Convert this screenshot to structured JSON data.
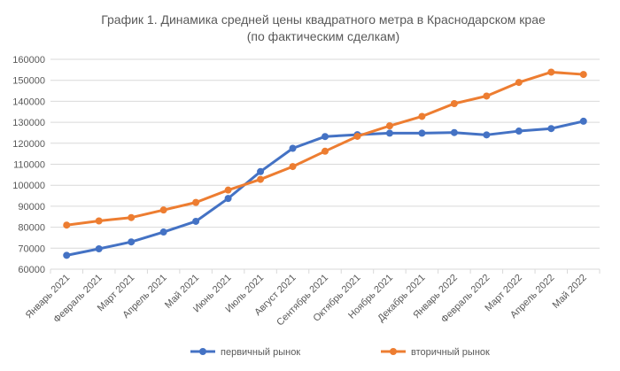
{
  "chart_data": {
    "type": "line",
    "title": "График 1. Динамика средней цены квадратного метра в Краснодарском крае",
    "subtitle": "(по фактическим сделкам)",
    "xlabel": "",
    "ylabel": "",
    "ylim": [
      60000,
      160000
    ],
    "yticks": [
      "60000",
      "70000",
      "80000",
      "90000",
      "100000",
      "110000",
      "120000",
      "130000",
      "140000",
      "150000",
      "160000"
    ],
    "grid": true,
    "legend_position": "bottom",
    "categories": [
      "Январь 2021",
      "Февраль 2021",
      "Март 2021",
      "Апрель 2021",
      "Май 2021",
      "Июнь 2021",
      "Июль 2021",
      "Август 2021",
      "Сентябрь 2021",
      "Октябрь 2021",
      "Ноябрь 2021",
      "Декабрь 2021",
      "Январь 2022",
      "Февраль 2022",
      "Март 2022",
      "Апрель 2022",
      "Май 2022"
    ],
    "series": [
      {
        "name": "первичный рынок",
        "color": "#4472C4",
        "values": [
          66600,
          69700,
          73000,
          77700,
          82800,
          93700,
          106500,
          117600,
          123200,
          124100,
          124800,
          124800,
          125100,
          124000,
          125800,
          127000,
          130500
        ]
      },
      {
        "name": "вторичный рынок",
        "color": "#ED7D31",
        "values": [
          81000,
          83000,
          84600,
          88200,
          91800,
          97700,
          102800,
          108900,
          116200,
          123300,
          128300,
          132800,
          138900,
          142500,
          149000,
          153900,
          152800
        ]
      }
    ]
  }
}
